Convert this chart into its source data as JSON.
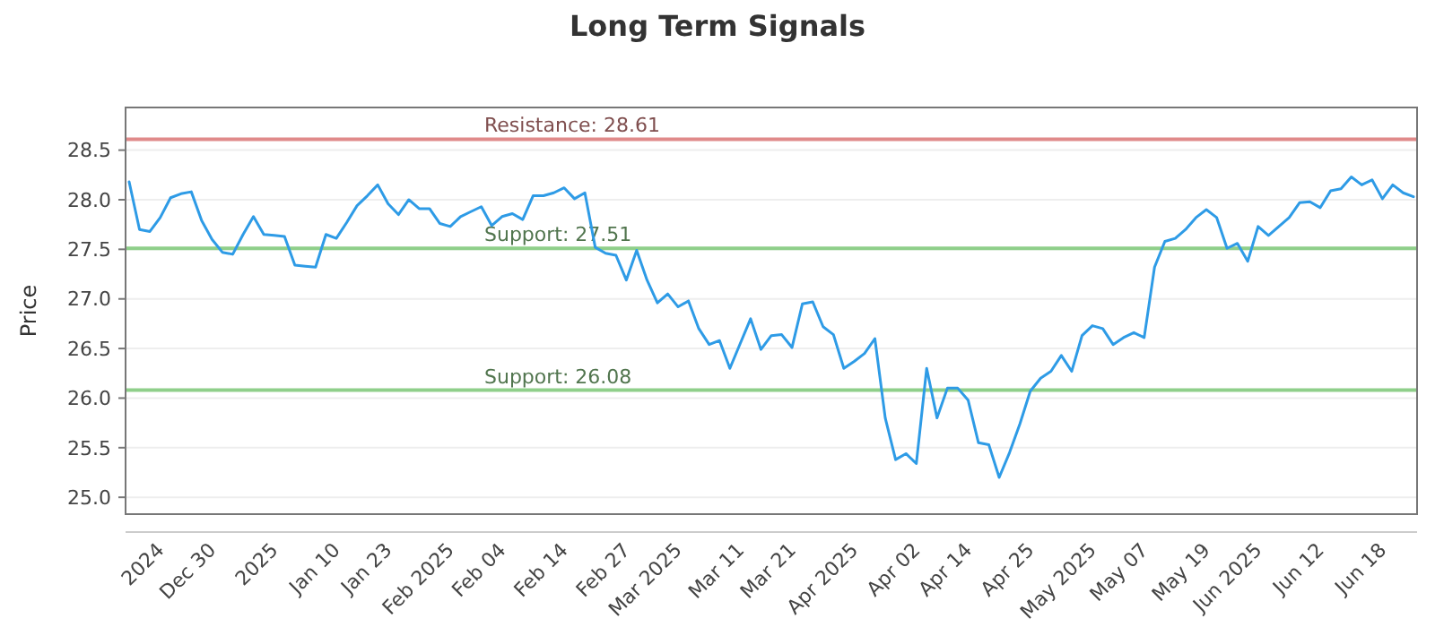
{
  "chart_data": {
    "type": "line",
    "title": "Long Term Signals",
    "ylabel": "Price",
    "categories": [
      null,
      null,
      null,
      "2024",
      null,
      null,
      null,
      null,
      "Dec 30",
      null,
      null,
      null,
      null,
      null,
      "2025",
      null,
      null,
      null,
      null,
      null,
      "Jan 10",
      null,
      null,
      null,
      null,
      "Jan 23",
      null,
      null,
      null,
      null,
      null,
      "Feb 2025",
      null,
      null,
      null,
      null,
      "Feb 04",
      null,
      null,
      null,
      null,
      null,
      "Feb 14",
      null,
      null,
      null,
      null,
      null,
      "Feb 27",
      null,
      null,
      null,
      null,
      "Mar 2025",
      null,
      null,
      null,
      null,
      null,
      "Mar 11",
      null,
      null,
      null,
      null,
      "Mar 21",
      null,
      null,
      null,
      null,
      null,
      "Apr 2025",
      null,
      null,
      null,
      null,
      null,
      "Apr 02",
      null,
      null,
      null,
      null,
      "Apr 14",
      null,
      null,
      null,
      null,
      null,
      "Apr 25",
      null,
      null,
      null,
      null,
      null,
      "May 2025",
      null,
      null,
      null,
      null,
      "May 07",
      null,
      null,
      null,
      null,
      null,
      "May 19",
      null,
      null,
      null,
      null,
      "Jun 2025",
      null,
      null,
      null,
      null,
      null,
      "Jun 12",
      null,
      null,
      null,
      null,
      null,
      "Jun 18",
      null,
      null,
      null
    ],
    "series": [
      {
        "color": "#2e9be6",
        "values": [
          28.18,
          27.7,
          27.68,
          27.82,
          28.02,
          28.06,
          28.08,
          27.79,
          27.6,
          27.47,
          27.45,
          27.65,
          27.83,
          27.65,
          27.64,
          27.63,
          27.34,
          27.33,
          27.32,
          27.65,
          27.61,
          27.77,
          27.94,
          28.04,
          28.15,
          27.96,
          27.85,
          28.0,
          27.91,
          27.91,
          27.76,
          27.73,
          27.83,
          27.88,
          27.93,
          27.74,
          27.83,
          27.86,
          27.8,
          28.04,
          28.04,
          28.07,
          28.12,
          28.01,
          28.07,
          27.52,
          27.46,
          27.44,
          27.19,
          27.49,
          27.19,
          26.96,
          27.05,
          26.92,
          26.98,
          26.7,
          26.54,
          26.58,
          26.3,
          26.55,
          26.8,
          26.49,
          26.63,
          26.64,
          26.51,
          26.95,
          26.97,
          26.72,
          26.64,
          26.3,
          26.37,
          26.45,
          26.6,
          25.8,
          25.38,
          25.44,
          25.34,
          26.3,
          25.8,
          26.1,
          26.1,
          25.98,
          25.55,
          25.53,
          25.2,
          25.45,
          25.74,
          26.07,
          26.2,
          26.27,
          26.43,
          26.27,
          26.63,
          26.73,
          26.7,
          26.54,
          26.61,
          26.66,
          26.61,
          27.32,
          27.58,
          27.61,
          27.7,
          27.82,
          27.9,
          27.82,
          27.51,
          27.56,
          27.38,
          27.73,
          27.64,
          27.73,
          27.82,
          27.97,
          27.98,
          27.92,
          28.09,
          28.11,
          28.23,
          28.15,
          28.2,
          28.01,
          28.15,
          28.07,
          28.03
        ]
      }
    ],
    "ylim": [
      24.83,
      28.93
    ],
    "yticks": [
      {
        "value": 25,
        "label": "25.0"
      },
      25.5,
      {
        "value": 26,
        "label": "26.0"
      },
      26.5,
      {
        "value": 27,
        "label": "27.0"
      },
      27.5,
      {
        "value": 28,
        "label": "28.0"
      },
      28.5
    ],
    "grid": "y",
    "ref_lines": [
      {
        "axis": "y",
        "value": 28.61,
        "label": "Resistance: 28.61",
        "color": "#e08a8a"
      },
      {
        "axis": "y",
        "value": 27.51,
        "label": "Support: 27.51",
        "color": "#8fcf8a"
      },
      {
        "axis": "y",
        "value": 26.08,
        "label": "Support: 26.08",
        "color": "#8fcf8a"
      }
    ]
  }
}
